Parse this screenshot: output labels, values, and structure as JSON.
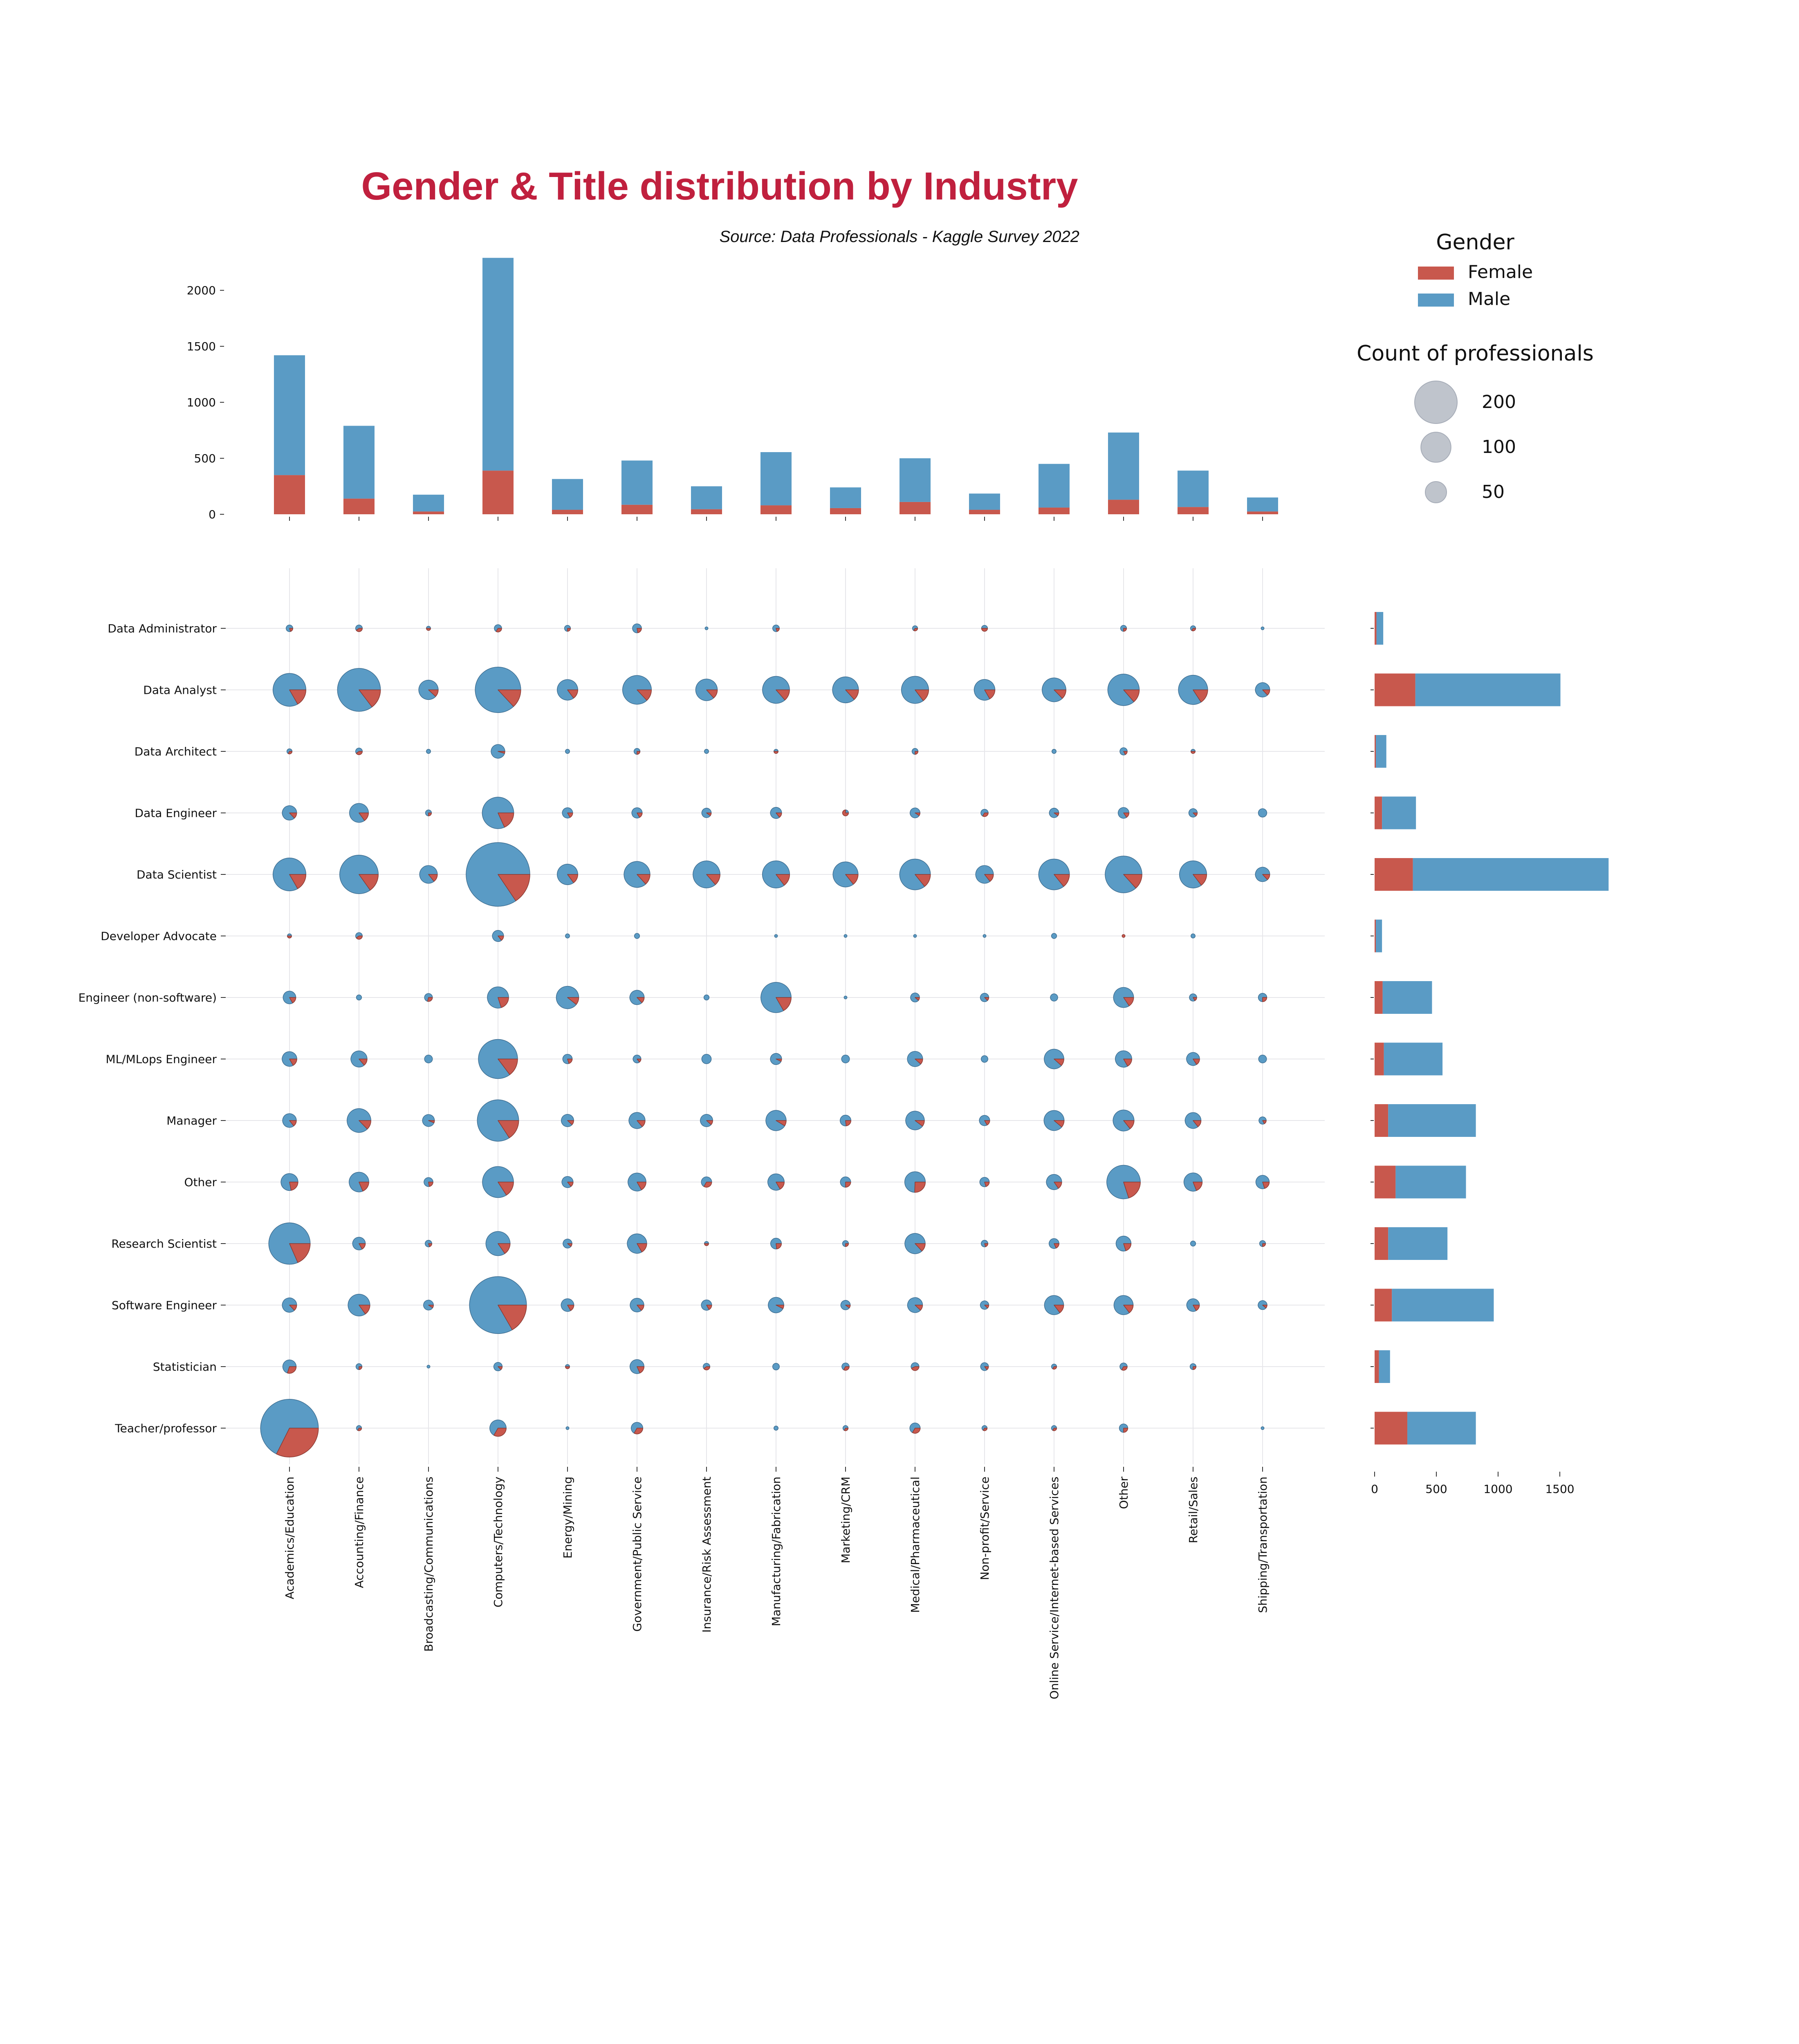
{
  "title": "Gender & Title distribution by Industry",
  "source": "Source: Data Professionals - Kaggle Survey 2022",
  "colors": {
    "female": "#c8584d",
    "male": "#5a9bc5",
    "title": "#c0203e",
    "legend_bubble": "#bfc4cc",
    "grid": "#e6e6ea"
  },
  "legend": {
    "gender_title": "Gender",
    "gender_items": [
      "Female",
      "Male"
    ],
    "size_title": "Count of professionals",
    "size_items": [
      {
        "label": "200",
        "value": 200
      },
      {
        "label": "100",
        "value": 100
      },
      {
        "label": "50",
        "value": 50
      }
    ]
  },
  "chart_data": {
    "type": "pie-matrix",
    "industries": [
      "Academics/Education",
      "Accounting/Finance",
      "Broadcasting/Communications",
      "Computers/Technology",
      "Energy/Mining",
      "Government/Public Service",
      "Insurance/Risk Assessment",
      "Manufacturing/Fabrication",
      "Marketing/CRM",
      "Medical/Pharmaceutical",
      "Non-profit/Service",
      "Online Service/Internet-based Services",
      "Other",
      "Retail/Sales",
      "Shipping/Transportation"
    ],
    "titles": [
      "Data Administrator",
      "Data Analyst",
      "Data Architect",
      "Data Engineer",
      "Data Scientist",
      "Developer Advocate",
      "Engineer (non-software)",
      "ML/MLops Engineer",
      "Manager",
      "Other",
      "Research Scientist",
      "Software Engineer",
      "Statistician",
      "Teacher/professor"
    ],
    "industry_totals": {
      "female": [
        350,
        140,
        25,
        390,
        40,
        85,
        45,
        80,
        55,
        110,
        40,
        60,
        130,
        65,
        25
      ],
      "male": [
        1070,
        650,
        150,
        1900,
        275,
        395,
        205,
        475,
        185,
        390,
        145,
        390,
        600,
        325,
        125
      ],
      "ylim": [
        0,
        2300
      ],
      "yticks": [
        0,
        500,
        1000,
        1500,
        2000
      ]
    },
    "title_totals": {
      "female": [
        15,
        330,
        10,
        60,
        310,
        10,
        65,
        75,
        110,
        170,
        110,
        140,
        35,
        265
      ],
      "male": [
        55,
        1175,
        85,
        275,
        1585,
        50,
        400,
        475,
        710,
        570,
        480,
        825,
        90,
        555
      ],
      "xlim": [
        0,
        1900
      ],
      "xticks": [
        0,
        500,
        1000,
        1500
      ]
    },
    "size_scale": {
      "reference_value": 200,
      "reference_radius_px": 52
    },
    "cells": [
      [
        [
          4,
          1
        ],
        [
          3,
          2
        ],
        [
          1,
          1
        ],
        [
          4,
          2
        ],
        [
          3,
          1
        ],
        [
          7,
          2
        ],
        [
          1,
          0
        ],
        [
          4,
          1
        ],
        [
          0,
          0
        ],
        [
          2,
          1
        ],
        [
          2,
          2
        ],
        [
          0,
          0
        ],
        [
          3,
          1
        ],
        [
          2,
          1
        ],
        [
          1,
          0
        ]
      ],
      [
        [
          100,
          20
        ],
        [
          175,
          30
        ],
        [
          37,
          5
        ],
        [
          200,
          30
        ],
        [
          40,
          7
        ],
        [
          80,
          12
        ],
        [
          45,
          7
        ],
        [
          70,
          11
        ],
        [
          65,
          10
        ],
        [
          70,
          12
        ],
        [
          40,
          8
        ],
        [
          55,
          8
        ],
        [
          95,
          15
        ],
        [
          80,
          15
        ],
        [
          20,
          3
        ]
      ],
      [
        [
          2,
          1
        ],
        [
          3,
          2
        ],
        [
          2,
          0
        ],
        [
          20,
          1
        ],
        [
          2,
          0
        ],
        [
          3,
          1
        ],
        [
          2,
          0
        ],
        [
          1,
          1
        ],
        [
          0,
          0
        ],
        [
          3,
          1
        ],
        [
          0,
          0
        ],
        [
          2,
          0
        ],
        [
          5,
          1
        ],
        [
          1,
          1
        ],
        [
          0,
          0
        ]
      ],
      [
        [
          20,
          3
        ],
        [
          34,
          6
        ],
        [
          3,
          1
        ],
        [
          90,
          20
        ],
        [
          10,
          2
        ],
        [
          10,
          2
        ],
        [
          9,
          1
        ],
        [
          12,
          2
        ],
        [
          1,
          3
        ],
        [
          10,
          1
        ],
        [
          4,
          2
        ],
        [
          9,
          1
        ],
        [
          11,
          2
        ],
        [
          7,
          1
        ],
        [
          8,
          0
        ]
      ],
      [
        [
          100,
          20
        ],
        [
          140,
          25
        ],
        [
          30,
          5
        ],
        [
          380,
          70
        ],
        [
          40,
          7
        ],
        [
          65,
          10
        ],
        [
          70,
          11
        ],
        [
          70,
          12
        ],
        [
          60,
          10
        ],
        [
          90,
          15
        ],
        [
          30,
          5
        ],
        [
          90,
          15
        ],
        [
          130,
          20
        ],
        [
          70,
          12
        ],
        [
          20,
          3
        ]
      ],
      [
        [
          1,
          1
        ],
        [
          3,
          2
        ],
        [
          0,
          0
        ],
        [
          12,
          2
        ],
        [
          2,
          0
        ],
        [
          3,
          0
        ],
        [
          0,
          0
        ],
        [
          1,
          0
        ],
        [
          1,
          0
        ],
        [
          1,
          0
        ],
        [
          1,
          0
        ],
        [
          3,
          0
        ],
        [
          0,
          1
        ],
        [
          2,
          0
        ],
        [
          0,
          0
        ]
      ],
      [
        [
          15,
          3
        ],
        [
          3,
          0
        ],
        [
          5,
          2
        ],
        [
          40,
          10
        ],
        [
          50,
          6
        ],
        [
          20,
          3
        ],
        [
          3,
          0
        ],
        [
          85,
          17
        ],
        [
          1,
          0
        ],
        [
          8,
          1
        ],
        [
          7,
          1
        ],
        [
          6,
          0
        ],
        [
          38,
          7
        ],
        [
          5,
          1
        ],
        [
          6,
          2
        ]
      ],
      [
        [
          20,
          4
        ],
        [
          25,
          4
        ],
        [
          7,
          0
        ],
        [
          145,
          25
        ],
        [
          8,
          2
        ],
        [
          6,
          1
        ],
        [
          10,
          0
        ],
        [
          13,
          1
        ],
        [
          7,
          0
        ],
        [
          23,
          3
        ],
        [
          5,
          0
        ],
        [
          38,
          5
        ],
        [
          25,
          5
        ],
        [
          16,
          3
        ],
        [
          7,
          0
        ]
      ],
      [
        [
          18,
          3
        ],
        [
          55,
          8
        ],
        [
          15,
          1
        ],
        [
          160,
          30
        ],
        [
          15,
          2
        ],
        [
          25,
          4
        ],
        [
          15,
          2
        ],
        [
          42,
          4
        ],
        [
          10,
          3
        ],
        [
          35,
          4
        ],
        [
          10,
          2
        ],
        [
          40,
          5
        ],
        [
          42,
          7
        ],
        [
          24,
          4
        ],
        [
          5,
          1
        ]
      ],
      [
        [
          25,
          7
        ],
        [
          35,
          8
        ],
        [
          7,
          2
        ],
        [
          90,
          17
        ],
        [
          12,
          2
        ],
        [
          30,
          6
        ],
        [
          8,
          4
        ],
        [
          25,
          5
        ],
        [
          9,
          3
        ],
        [
          35,
          12
        ],
        [
          8,
          2
        ],
        [
          22,
          4
        ],
        [
          100,
          25
        ],
        [
          30,
          7
        ],
        [
          16,
          4
        ]
      ],
      [
        [
          155,
          35
        ],
        [
          15,
          3
        ],
        [
          4,
          1
        ],
        [
          55,
          10
        ],
        [
          8,
          1
        ],
        [
          35,
          7
        ],
        [
          1,
          1
        ],
        [
          10,
          3
        ],
        [
          3,
          1
        ],
        [
          40,
          6
        ],
        [
          4,
          1
        ],
        [
          9,
          2
        ],
        [
          20,
          5
        ],
        [
          3,
          0
        ],
        [
          3,
          1
        ]
      ],
      [
        [
          20,
          3
        ],
        [
          45,
          8
        ],
        [
          10,
          1
        ],
        [
          300,
          60
        ],
        [
          15,
          3
        ],
        [
          18,
          3
        ],
        [
          10,
          2
        ],
        [
          25,
          2
        ],
        [
          9,
          1
        ],
        [
          22,
          3
        ],
        [
          7,
          1
        ],
        [
          35,
          6
        ],
        [
          35,
          6
        ],
        [
          15,
          3
        ],
        [
          8,
          1
        ]
      ],
      [
        [
          14,
          6
        ],
        [
          3,
          1
        ],
        [
          1,
          0
        ],
        [
          7,
          1
        ],
        [
          1,
          1
        ],
        [
          18,
          4
        ],
        [
          3,
          2
        ],
        [
          5,
          0
        ],
        [
          4,
          2
        ],
        [
          4,
          3
        ],
        [
          6,
          1
        ],
        [
          2,
          1
        ],
        [
          4,
          2
        ],
        [
          3,
          1
        ],
        [
          0,
          0
        ]
      ],
      [
        [
          250,
          120
        ],
        [
          2,
          1
        ],
        [
          0,
          0
        ],
        [
          20,
          10
        ],
        [
          1,
          0
        ],
        [
          10,
          5
        ],
        [
          0,
          0
        ],
        [
          2,
          0
        ],
        [
          2,
          1
        ],
        [
          8,
          4
        ],
        [
          2,
          1
        ],
        [
          2,
          1
        ],
        [
          6,
          2
        ],
        [
          0,
          0
        ],
        [
          1,
          0
        ]
      ]
    ]
  }
}
